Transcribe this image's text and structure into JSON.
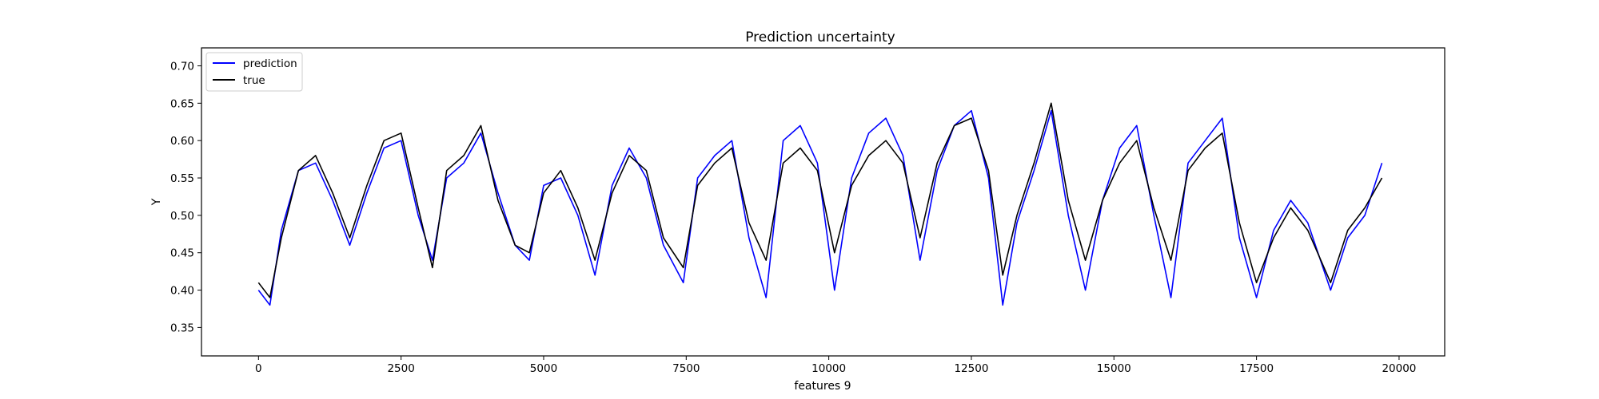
{
  "chart_data": {
    "type": "line",
    "title": "Prediction uncertainty",
    "xlabel": "features 9",
    "ylabel": "Y",
    "xlim": [
      -1000,
      20800
    ],
    "ylim": [
      0.312,
      0.724
    ],
    "xticks": [
      0,
      2500,
      5000,
      7500,
      10000,
      12500,
      15000,
      17500,
      20000
    ],
    "xtick_labels": [
      "0",
      "2500",
      "5000",
      "7500",
      "10000",
      "12500",
      "15000",
      "17500",
      "20000"
    ],
    "yticks": [
      0.35,
      0.4,
      0.45,
      0.5,
      0.55,
      0.6,
      0.65,
      0.7
    ],
    "ytick_labels": [
      "0.35",
      "0.40",
      "0.45",
      "0.50",
      "0.55",
      "0.60",
      "0.65",
      "0.70"
    ],
    "grid": false,
    "legend_position": "top-left",
    "series": [
      {
        "name": "prediction",
        "color": "#0000ff",
        "x": [
          0,
          200,
          400,
          700,
          1000,
          1300,
          1600,
          1900,
          2200,
          2500,
          2800,
          3050,
          3300,
          3600,
          3900,
          4200,
          4500,
          4750,
          5000,
          5300,
          5600,
          5900,
          6200,
          6500,
          6800,
          7100,
          7450,
          7700,
          8000,
          8300,
          8600,
          8900,
          9200,
          9500,
          9800,
          10100,
          10400,
          10700,
          11000,
          11300,
          11600,
          11900,
          12200,
          12500,
          12800,
          13050,
          13300,
          13600,
          13900,
          14200,
          14500,
          14800,
          15100,
          15400,
          15700,
          16000,
          16300,
          16600,
          16900,
          17200,
          17500,
          17800,
          18100,
          18400,
          18800,
          19100,
          19400,
          19700
        ],
        "values": [
          0.4,
          0.38,
          0.48,
          0.56,
          0.57,
          0.52,
          0.46,
          0.53,
          0.59,
          0.6,
          0.5,
          0.44,
          0.55,
          0.57,
          0.61,
          0.53,
          0.46,
          0.44,
          0.54,
          0.55,
          0.5,
          0.42,
          0.54,
          0.59,
          0.55,
          0.46,
          0.41,
          0.55,
          0.58,
          0.6,
          0.47,
          0.39,
          0.6,
          0.62,
          0.57,
          0.4,
          0.55,
          0.61,
          0.63,
          0.58,
          0.44,
          0.56,
          0.62,
          0.64,
          0.55,
          0.38,
          0.49,
          0.56,
          0.64,
          0.5,
          0.4,
          0.52,
          0.59,
          0.62,
          0.5,
          0.39,
          0.57,
          0.6,
          0.63,
          0.47,
          0.39,
          0.48,
          0.52,
          0.49,
          0.4,
          0.47,
          0.5,
          0.57
        ]
      },
      {
        "name": "true",
        "color": "#000000",
        "x": [
          0,
          200,
          400,
          700,
          1000,
          1300,
          1600,
          1900,
          2200,
          2500,
          2800,
          3050,
          3300,
          3600,
          3900,
          4200,
          4500,
          4750,
          5000,
          5300,
          5600,
          5900,
          6200,
          6500,
          6800,
          7100,
          7450,
          7700,
          8000,
          8300,
          8600,
          8900,
          9200,
          9500,
          9800,
          10100,
          10400,
          10700,
          11000,
          11300,
          11600,
          11900,
          12200,
          12500,
          12800,
          13050,
          13300,
          13600,
          13900,
          14200,
          14500,
          14800,
          15100,
          15400,
          15700,
          16000,
          16300,
          16600,
          16900,
          17200,
          17500,
          17800,
          18100,
          18400,
          18800,
          19100,
          19400,
          19700
        ],
        "values": [
          0.41,
          0.39,
          0.47,
          0.56,
          0.58,
          0.53,
          0.47,
          0.54,
          0.6,
          0.61,
          0.51,
          0.43,
          0.56,
          0.58,
          0.62,
          0.52,
          0.46,
          0.45,
          0.53,
          0.56,
          0.51,
          0.44,
          0.53,
          0.58,
          0.56,
          0.47,
          0.43,
          0.54,
          0.57,
          0.59,
          0.49,
          0.44,
          0.57,
          0.59,
          0.56,
          0.45,
          0.54,
          0.58,
          0.6,
          0.57,
          0.47,
          0.57,
          0.62,
          0.63,
          0.56,
          0.42,
          0.5,
          0.57,
          0.65,
          0.52,
          0.44,
          0.52,
          0.57,
          0.6,
          0.51,
          0.44,
          0.56,
          0.59,
          0.61,
          0.49,
          0.41,
          0.47,
          0.51,
          0.48,
          0.41,
          0.48,
          0.51,
          0.55
        ]
      }
    ]
  }
}
